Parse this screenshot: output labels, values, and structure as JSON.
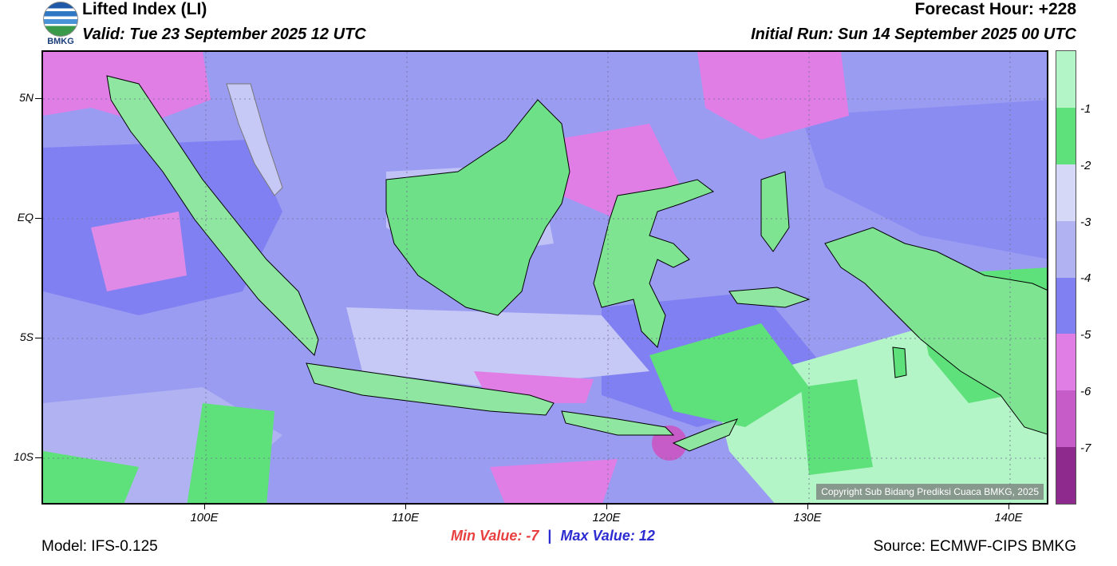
{
  "header": {
    "logo_text": "BMKG",
    "title": "Lifted Index (LI)",
    "valid": "Valid: Tue 23 September 2025 12 UTC",
    "forecast_hour": "Forecast Hour: +228",
    "initial_run": "Initial Run: Sun 14 September 2025 00 UTC"
  },
  "map": {
    "copyright": "Copyright Sub Bidang Prediksi Cuaca BMKG, 2025",
    "lat_labels": [
      "5N",
      "EQ",
      "5S",
      "10S"
    ],
    "lon_labels": [
      "100E",
      "110E",
      "120E",
      "130E",
      "140E"
    ]
  },
  "colorbar": {
    "labels": [
      "-1",
      "-2",
      "-3",
      "-4",
      "-5",
      "-6",
      "-7"
    ],
    "colors": [
      "#b4f5c8",
      "#5ee07a",
      "#d6d8f8",
      "#b0b2f2",
      "#8080f2",
      "#e07ee6",
      "#c65cc8",
      "#8e2a8e"
    ]
  },
  "stats": {
    "min_label": "Min Value:",
    "min_value": "-7",
    "separator": "|",
    "max_label": "Max Value:",
    "max_value": "12"
  },
  "footer": {
    "model": "Model: IFS-0.125",
    "source": "Source: ECMWF-CIPS BMKG"
  }
}
